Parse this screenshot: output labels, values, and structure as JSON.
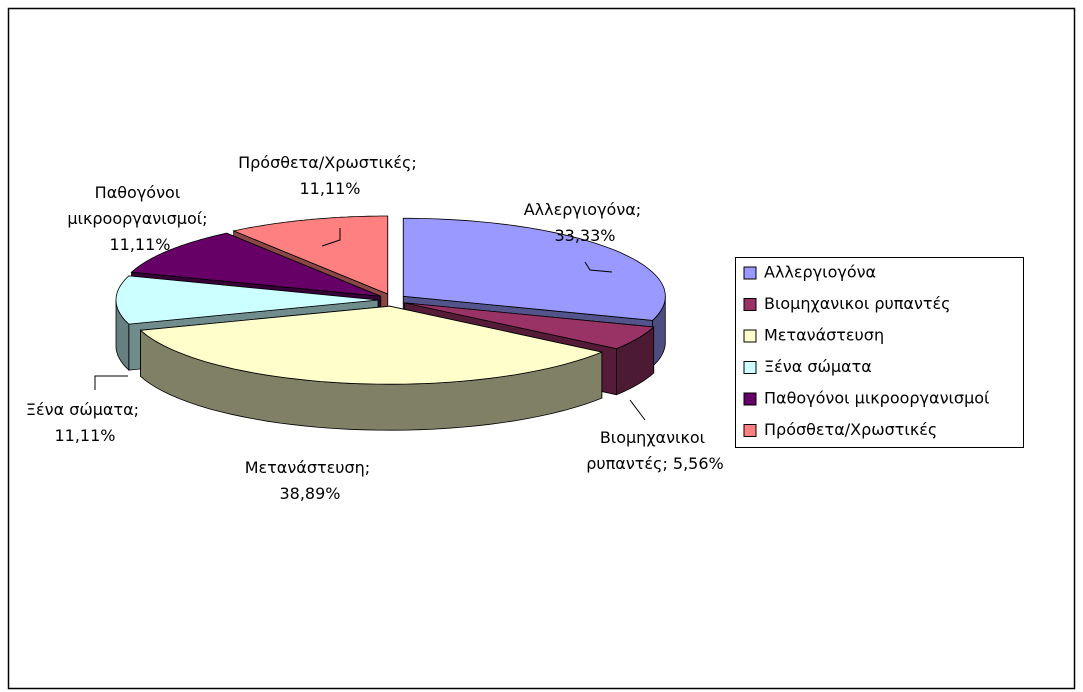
{
  "chart_data": {
    "type": "pie",
    "categories": [
      "Αλλεργιογόνα",
      "Βιομηχανικοι ρυπαντές",
      "Μετανάστευση",
      "Ξένα σώματα",
      "Παθογόνοι μικροοργανισμοί",
      "Πρόσθετα/Χρωστικές"
    ],
    "values": [
      33.33,
      5.56,
      38.89,
      11.11,
      11.11,
      11.11
    ],
    "value_labels": [
      "Αλλεργιογόνα; 33,33%",
      "Βιομηχανικοι ρυπαντές; 5,56%",
      "Μετανάστευση; 38,89%",
      "Ξένα σώματα; 11,11%",
      "Παθογόνοι μικροοργανισμοί; 11,11%",
      "Πρόσθετα/Χρωστικές; 11,11%"
    ],
    "colors": [
      "#9999ff",
      "#993366",
      "#ffffcc",
      "#ccffff",
      "#660066",
      "#ff8080"
    ],
    "legend": "right"
  }
}
